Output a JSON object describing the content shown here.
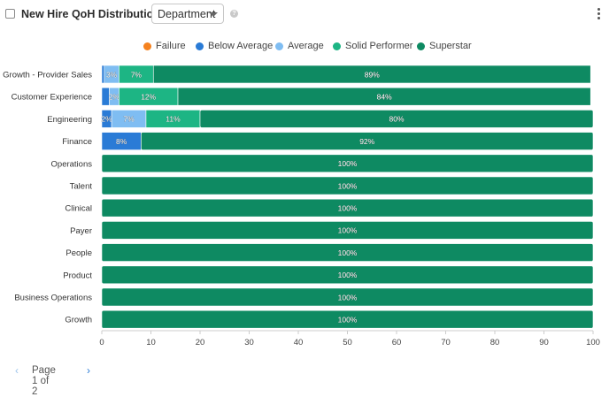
{
  "header": {
    "title": "New Hire QoH Distribution by",
    "dropdown_value": "Department",
    "help_icon": "question-circle-icon",
    "menu_icon": "kebab-menu-icon"
  },
  "pager": {
    "prev_icon": "chevron-left-icon",
    "prev_glyph": "‹",
    "text": "Page 1 of 2",
    "next_icon": "chevron-right-icon",
    "next_glyph": "›"
  },
  "chart_data": {
    "type": "bar",
    "orientation": "horizontal",
    "stacked": true,
    "title": "",
    "xlabel": "",
    "ylabel": "",
    "xlim": [
      0,
      100
    ],
    "x_ticks": [
      0,
      10,
      20,
      30,
      40,
      50,
      60,
      70,
      80,
      90,
      100
    ],
    "legend_position": "top",
    "grid": false,
    "categories": [
      "Growth - Provider Sales",
      "Customer Experience",
      "Engineering",
      "Finance",
      "Operations",
      "Talent",
      "Clinical",
      "Payer",
      "People",
      "Product",
      "Business Operations",
      "Growth"
    ],
    "series": [
      {
        "name": "Failure",
        "color": "#f5821f",
        "values": [
          0,
          0,
          0,
          0,
          0,
          0,
          0,
          0,
          0,
          0,
          0,
          0
        ]
      },
      {
        "name": "Below Average",
        "color": "#2a7bd6",
        "values": [
          0.5,
          1.5,
          2,
          8,
          0,
          0,
          0,
          0,
          0,
          0,
          0,
          0
        ]
      },
      {
        "name": "Average",
        "color": "#7fbdf2",
        "values": [
          3,
          2,
          7,
          0,
          0,
          0,
          0,
          0,
          0,
          0,
          0,
          0
        ]
      },
      {
        "name": "Solid Performer",
        "color": "#1db584",
        "values": [
          7,
          12,
          11,
          0,
          0,
          0,
          0,
          0,
          0,
          0,
          0,
          0
        ]
      },
      {
        "name": "Superstar",
        "color": "#0e8a62",
        "values": [
          89,
          84,
          80,
          92,
          100,
          100,
          100,
          100,
          100,
          100,
          100,
          100
        ]
      }
    ],
    "data_labels": [
      [
        "",
        "",
        "3%",
        "7%",
        "89%"
      ],
      [
        "",
        "",
        "2%",
        "12%",
        "84%"
      ],
      [
        "",
        "2%",
        "7%",
        "11%",
        "80%"
      ],
      [
        "",
        "8%",
        "",
        "",
        "92%"
      ],
      [
        "",
        "",
        "",
        "",
        "100%"
      ],
      [
        "",
        "",
        "",
        "",
        "100%"
      ],
      [
        "",
        "",
        "",
        "",
        "100%"
      ],
      [
        "",
        "",
        "",
        "",
        "100%"
      ],
      [
        "",
        "",
        "",
        "",
        "100%"
      ],
      [
        "",
        "",
        "",
        "",
        "100%"
      ],
      [
        "",
        "",
        "",
        "",
        "100%"
      ],
      [
        "",
        "",
        "",
        "",
        "100%"
      ]
    ]
  }
}
